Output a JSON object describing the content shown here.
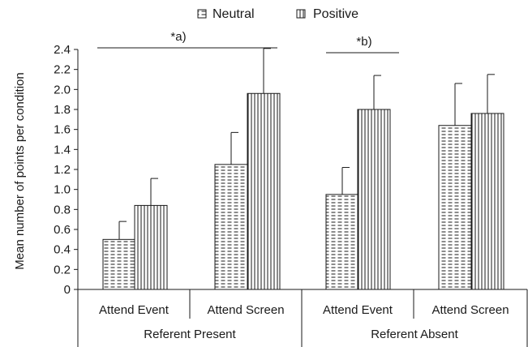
{
  "chart_data": {
    "type": "bar",
    "ylabel": "Mean number of points per condition",
    "ylim": [
      0,
      2.4
    ],
    "yticks": [
      "0",
      "0.2",
      "0.4",
      "0.6",
      "0.8",
      "1.0",
      "1.2",
      "1.4",
      "1.6",
      "1.8",
      "2.0",
      "2.2",
      "2.4"
    ],
    "legend": {
      "position": "top-center"
    },
    "grid": false,
    "categories": [
      "Attend Event",
      "Attend Screen",
      "Attend Event",
      "Attend Screen"
    ],
    "groups": [
      "Referent Present",
      "Referent Absent"
    ],
    "series": [
      {
        "name": "Neutral",
        "pattern": "horizontal-dashes",
        "values": [
          0.5,
          1.25,
          0.95,
          1.64
        ],
        "errors": [
          0.18,
          0.32,
          0.27,
          0.42
        ]
      },
      {
        "name": "Positive",
        "pattern": "vertical-lines",
        "values": [
          0.84,
          1.96,
          1.8,
          1.76
        ],
        "errors": [
          0.27,
          0.45,
          0.34,
          0.39
        ]
      }
    ],
    "annotations": [
      {
        "text": "*a)",
        "from_category": 0,
        "to_category": 1,
        "y": 2.4
      },
      {
        "text": "*b)",
        "from_category": 2,
        "to_category": 2,
        "y": 2.35
      }
    ],
    "colors": {
      "ink": "#1a1a1a",
      "background": "#ffffff"
    }
  }
}
